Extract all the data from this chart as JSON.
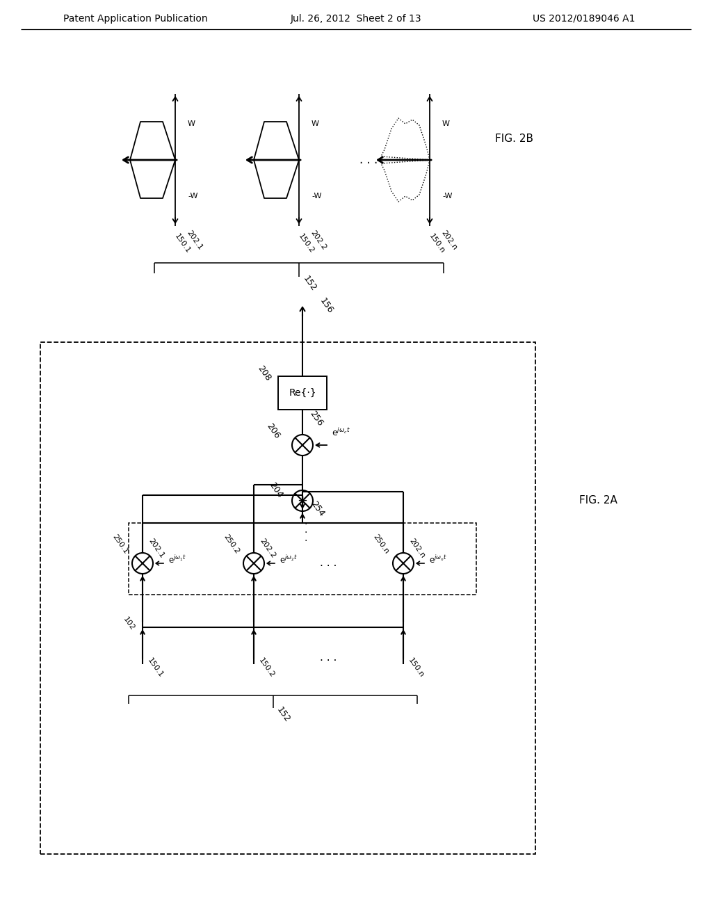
{
  "bg_color": "#ffffff",
  "header_left": "Patent Application Publication",
  "header_center": "Jul. 26, 2012  Sheet 2 of 13",
  "header_right": "US 2012/0189046 A1",
  "fig2a_label": "FIG. 2A",
  "fig2b_label": "FIG. 2B",
  "line_color": "#000000"
}
